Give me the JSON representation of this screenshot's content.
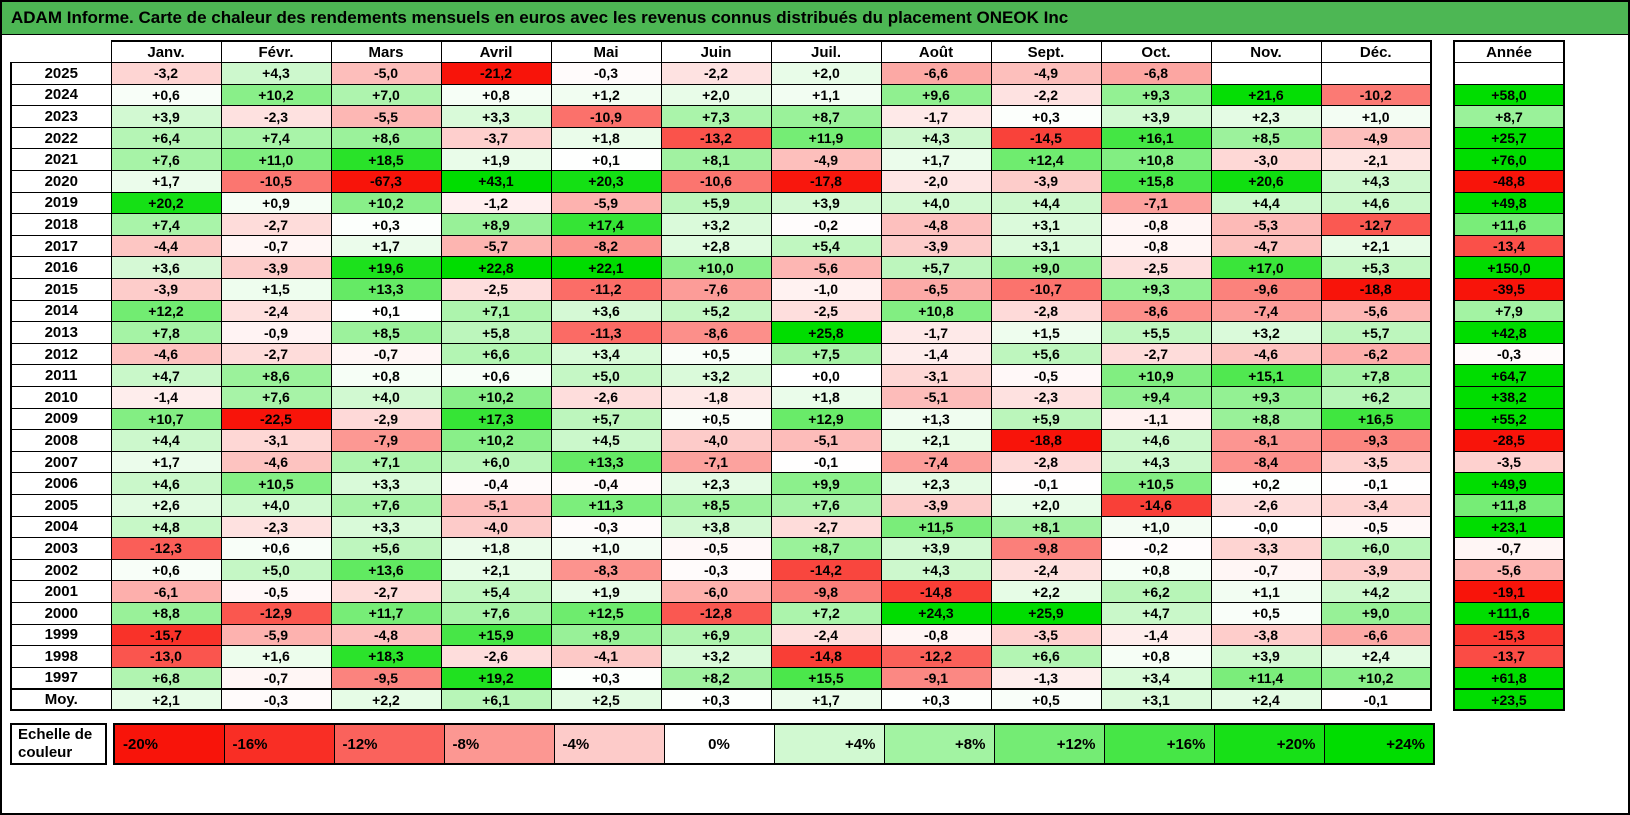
{
  "chart_data": {
    "type": "heatmap",
    "title": "ADAM Informe. Carte de chaleur des rendements mensuels en euros avec les revenus connus distribués du placement ONEOK Inc",
    "columns": [
      "Janv.",
      "Févr.",
      "Mars",
      "Avril",
      "Mai",
      "Juin",
      "Juil.",
      "Août",
      "Sept.",
      "Oct.",
      "Nov.",
      "Déc."
    ],
    "annual_header": "Année",
    "avg_label": "Moy.",
    "rows": [
      {
        "year": "2025",
        "cells": [
          "-3,2",
          "+4,3",
          "-5,0",
          "-21,2",
          "-0,3",
          "-2,2",
          "+2,0",
          "-6,6",
          "-4,9",
          "-6,8",
          "",
          ""
        ],
        "annual": ""
      },
      {
        "year": "2024",
        "cells": [
          "+0,6",
          "+10,2",
          "+7,0",
          "+0,8",
          "+1,2",
          "+2,0",
          "+1,1",
          "+9,6",
          "-2,2",
          "+9,3",
          "+21,6",
          "-10,2"
        ],
        "annual": "+58,0"
      },
      {
        "year": "2023",
        "cells": [
          "+3,9",
          "-2,3",
          "-5,5",
          "+3,3",
          "-10,9",
          "+7,3",
          "+8,7",
          "-1,7",
          "+0,3",
          "+3,9",
          "+2,3",
          "+1,0"
        ],
        "annual": "+8,7"
      },
      {
        "year": "2022",
        "cells": [
          "+6,4",
          "+7,4",
          "+8,6",
          "-3,7",
          "+1,8",
          "-13,2",
          "+11,9",
          "+4,3",
          "-14,5",
          "+16,1",
          "+8,5",
          "-4,9"
        ],
        "annual": "+25,7"
      },
      {
        "year": "2021",
        "cells": [
          "+7,6",
          "+11,0",
          "+18,5",
          "+1,9",
          "+0,1",
          "+8,1",
          "-4,9",
          "+1,7",
          "+12,4",
          "+10,8",
          "-3,0",
          "-2,1"
        ],
        "annual": "+76,0"
      },
      {
        "year": "2020",
        "cells": [
          "+1,7",
          "-10,5",
          "-67,3",
          "+43,1",
          "+20,3",
          "-10,6",
          "-17,8",
          "-2,0",
          "-3,9",
          "+15,8",
          "+20,6",
          "+4,3"
        ],
        "annual": "-48,8"
      },
      {
        "year": "2019",
        "cells": [
          "+20,2",
          "+0,9",
          "+10,2",
          "-1,2",
          "-5,9",
          "+5,9",
          "+3,9",
          "+4,0",
          "+4,4",
          "-7,1",
          "+4,4",
          "+4,6"
        ],
        "annual": "+49,8"
      },
      {
        "year": "2018",
        "cells": [
          "+7,4",
          "-2,7",
          "+0,3",
          "+8,9",
          "+17,4",
          "+3,2",
          "-0,2",
          "-4,8",
          "+3,1",
          "-0,8",
          "-5,3",
          "-12,7"
        ],
        "annual": "+11,6"
      },
      {
        "year": "2017",
        "cells": [
          "-4,4",
          "-0,7",
          "+1,7",
          "-5,7",
          "-8,2",
          "+2,8",
          "+5,4",
          "-3,9",
          "+3,1",
          "-0,8",
          "-4,7",
          "+2,1"
        ],
        "annual": "-13,4"
      },
      {
        "year": "2016",
        "cells": [
          "+3,6",
          "-3,9",
          "+19,6",
          "+22,8",
          "+22,1",
          "+10,0",
          "-5,6",
          "+5,7",
          "+9,0",
          "-2,5",
          "+17,0",
          "+5,3"
        ],
        "annual": "+150,0"
      },
      {
        "year": "2015",
        "cells": [
          "-3,9",
          "+1,5",
          "+13,3",
          "-2,5",
          "-11,2",
          "-7,6",
          "-1,0",
          "-6,5",
          "-10,7",
          "+9,3",
          "-9,6",
          "-18,8"
        ],
        "annual": "-39,5"
      },
      {
        "year": "2014",
        "cells": [
          "+12,2",
          "-2,4",
          "+0,1",
          "+7,1",
          "+3,6",
          "+5,2",
          "-2,5",
          "+10,8",
          "-2,8",
          "-8,6",
          "-7,4",
          "-5,6"
        ],
        "annual": "+7,9"
      },
      {
        "year": "2013",
        "cells": [
          "+7,8",
          "-0,9",
          "+8,5",
          "+5,8",
          "-11,3",
          "-8,6",
          "+25,8",
          "-1,7",
          "+1,5",
          "+5,5",
          "+3,2",
          "+5,7"
        ],
        "annual": "+42,8"
      },
      {
        "year": "2012",
        "cells": [
          "-4,6",
          "-2,7",
          "-0,7",
          "+6,6",
          "+3,4",
          "+0,5",
          "+7,5",
          "-1,4",
          "+5,6",
          "-2,7",
          "-4,6",
          "-6,2"
        ],
        "annual": "-0,3"
      },
      {
        "year": "2011",
        "cells": [
          "+4,7",
          "+8,6",
          "+0,8",
          "+0,6",
          "+5,0",
          "+3,2",
          "+0,0",
          "-3,1",
          "-0,5",
          "+10,9",
          "+15,1",
          "+7,8"
        ],
        "annual": "+64,7"
      },
      {
        "year": "2010",
        "cells": [
          "-1,4",
          "+7,6",
          "+4,0",
          "+10,2",
          "-2,6",
          "-1,8",
          "+1,8",
          "-5,1",
          "-2,3",
          "+9,4",
          "+9,3",
          "+6,2"
        ],
        "annual": "+38,2"
      },
      {
        "year": "2009",
        "cells": [
          "+10,7",
          "-22,5",
          "-2,9",
          "+17,3",
          "+5,7",
          "+0,5",
          "+12,9",
          "+1,3",
          "+5,9",
          "-1,1",
          "+8,8",
          "+16,5"
        ],
        "annual": "+55,2"
      },
      {
        "year": "2008",
        "cells": [
          "+4,4",
          "-3,1",
          "-7,9",
          "+10,2",
          "+4,5",
          "-4,0",
          "-5,1",
          "+2,1",
          "-18,8",
          "+4,6",
          "-8,1",
          "-9,3"
        ],
        "annual": "-28,5"
      },
      {
        "year": "2007",
        "cells": [
          "+1,7",
          "-4,6",
          "+7,1",
          "+6,0",
          "+13,3",
          "-7,1",
          "-0,1",
          "-7,4",
          "-2,8",
          "+4,3",
          "-8,4",
          "-3,5"
        ],
        "annual": "-3,5"
      },
      {
        "year": "2006",
        "cells": [
          "+4,6",
          "+10,5",
          "+3,3",
          "-0,4",
          "-0,4",
          "+2,3",
          "+9,9",
          "+2,3",
          "-0,1",
          "+10,5",
          "+0,2",
          "-0,1"
        ],
        "annual": "+49,9"
      },
      {
        "year": "2005",
        "cells": [
          "+2,6",
          "+4,0",
          "+7,6",
          "-5,1",
          "+11,3",
          "+8,5",
          "+7,6",
          "-3,9",
          "+2,0",
          "-14,6",
          "-2,6",
          "-3,4"
        ],
        "annual": "+11,8"
      },
      {
        "year": "2004",
        "cells": [
          "+4,8",
          "-2,3",
          "+3,3",
          "-4,0",
          "-0,3",
          "+3,8",
          "-2,7",
          "+11,5",
          "+8,1",
          "+1,0",
          "-0,0",
          "-0,5"
        ],
        "annual": "+23,1"
      },
      {
        "year": "2003",
        "cells": [
          "-12,3",
          "+0,6",
          "+5,6",
          "+1,8",
          "+1,0",
          "-0,5",
          "+8,7",
          "+3,9",
          "-9,8",
          "-0,2",
          "-3,3",
          "+6,0"
        ],
        "annual": "-0,7"
      },
      {
        "year": "2002",
        "cells": [
          "+0,6",
          "+5,0",
          "+13,6",
          "+2,1",
          "-8,3",
          "-0,3",
          "-14,2",
          "+4,3",
          "-2,4",
          "+0,8",
          "-0,7",
          "-3,9"
        ],
        "annual": "-5,6"
      },
      {
        "year": "2001",
        "cells": [
          "-6,1",
          "-0,5",
          "-2,7",
          "+5,4",
          "+1,9",
          "-6,0",
          "-9,8",
          "-14,8",
          "+2,2",
          "+6,2",
          "+1,1",
          "+4,2"
        ],
        "annual": "-19,1"
      },
      {
        "year": "2000",
        "cells": [
          "+8,8",
          "-12,9",
          "+11,7",
          "+7,6",
          "+12,5",
          "-12,8",
          "+7,2",
          "+24,3",
          "+25,9",
          "+4,7",
          "+0,5",
          "+9,0"
        ],
        "annual": "+111,6"
      },
      {
        "year": "1999",
        "cells": [
          "-15,7",
          "-5,9",
          "-4,8",
          "+15,9",
          "+8,9",
          "+6,9",
          "-2,4",
          "-0,8",
          "-3,5",
          "-1,4",
          "-3,8",
          "-6,6"
        ],
        "annual": "-15,3"
      },
      {
        "year": "1998",
        "cells": [
          "-13,0",
          "+1,6",
          "+18,3",
          "-2,6",
          "-4,1",
          "+3,2",
          "-14,8",
          "-12,2",
          "+6,6",
          "+0,8",
          "+3,9",
          "+2,4"
        ],
        "annual": "-13,7"
      },
      {
        "year": "1997",
        "cells": [
          "+6,8",
          "-0,7",
          "-9,5",
          "+19,2",
          "+0,3",
          "+8,2",
          "+15,5",
          "-9,1",
          "-1,3",
          "+3,4",
          "+11,4",
          "+10,2"
        ],
        "annual": "+61,8"
      }
    ],
    "avg_row": {
      "cells": [
        "+2,1",
        "-0,3",
        "+2,2",
        "+6,1",
        "+2,5",
        "+0,3",
        "+1,7",
        "+0,3",
        "+0,5",
        "+3,1",
        "+2,4",
        "-0,1"
      ],
      "annual": "+23,5"
    },
    "scale_label": "Echelle de couleur",
    "scale_stops": [
      "-20%",
      "-16%",
      "-12%",
      "-8%",
      "-4%",
      "0%",
      "+4%",
      "+8%",
      "+12%",
      "+16%",
      "+20%",
      "+24%"
    ],
    "colors": {
      "title_bg": "#4DB754",
      "negative_max": "#F8140A",
      "zero": "#FFFFFF",
      "positive_max": "#00DD00"
    }
  }
}
